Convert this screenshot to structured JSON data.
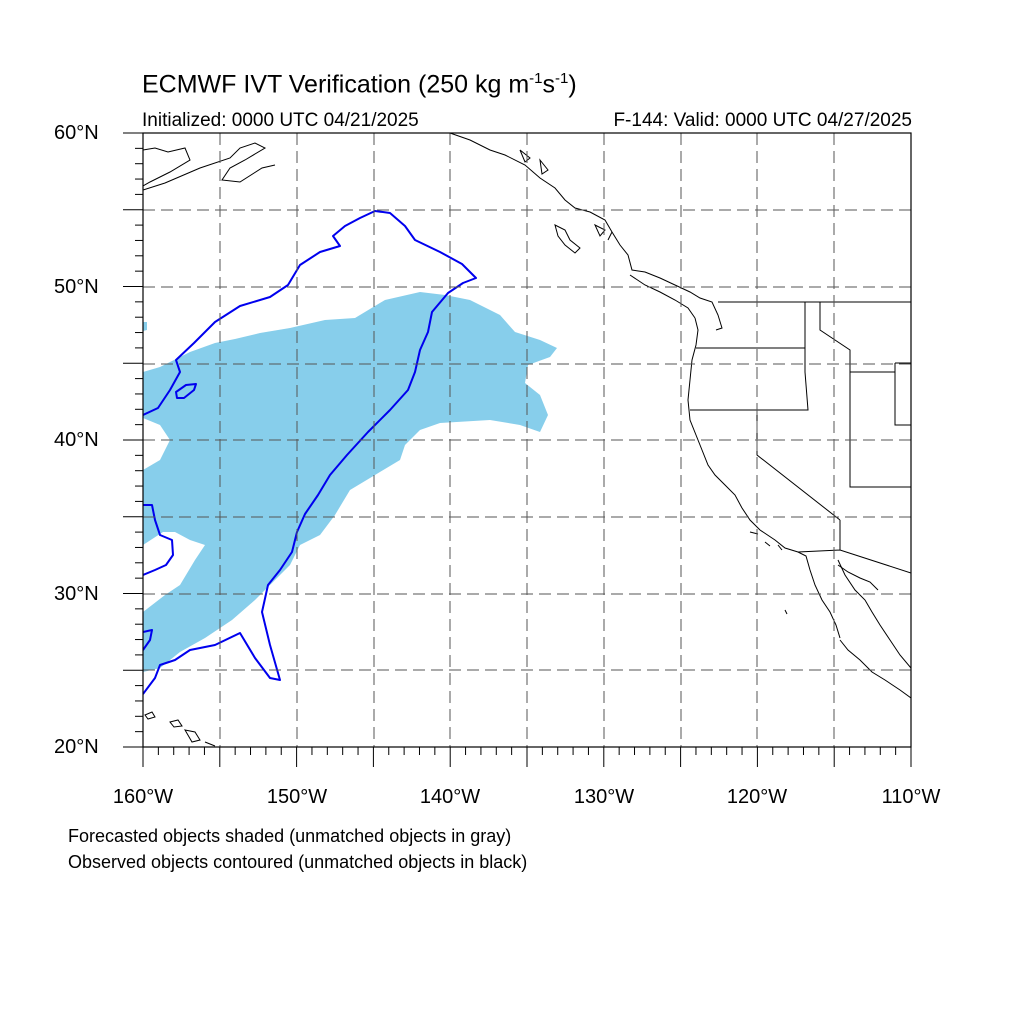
{
  "header": {
    "title_main": "ECMWF IVT Verification (250 kg m",
    "title_sup1": "-1",
    "title_mid": "s",
    "title_sup2": "-1",
    "title_end": ")",
    "init_text": "Initialized: 0000 UTC 04/21/2025",
    "valid_text": "F-144: Valid: 0000 UTC 04/27/2025"
  },
  "axes": {
    "lat_labels": [
      "60°N",
      "50°N",
      "40°N",
      "30°N",
      "20°N"
    ],
    "lon_labels": [
      "160°W",
      "150°W",
      "140°W",
      "130°W",
      "120°W",
      "110°W"
    ],
    "lat_range": [
      20,
      60
    ],
    "lon_range": [
      -160,
      -110
    ],
    "grid": true
  },
  "legend": {
    "line1": "Forecasted objects shaded (unmatched objects in gray)",
    "line2": "Observed objects contoured (unmatched objects in black)"
  },
  "colors": {
    "forecast_fill": "#87ceeb",
    "observed_contour": "#0000ee",
    "coastline": "#000000",
    "grid": "#555555"
  }
}
